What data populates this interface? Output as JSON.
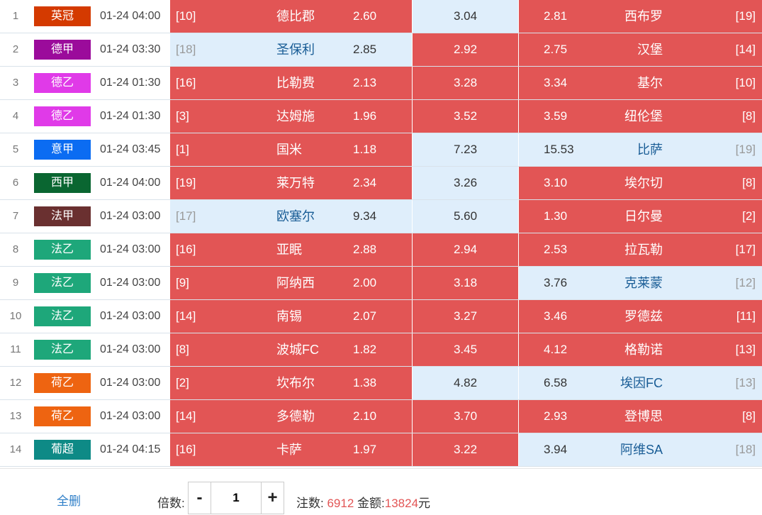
{
  "colors": {
    "hot": "#e25555",
    "cold": "#dfeefb"
  },
  "matches": [
    {
      "num": "1",
      "league": "英冠",
      "league_color": "#d43a00",
      "time": "01-24 04:00",
      "home_rank": "[10]",
      "home": "德比郡",
      "home_odd": "2.60",
      "home_hot": true,
      "draw_odd": "3.04",
      "draw_hot": false,
      "away_odd": "2.81",
      "away": "西布罗",
      "away_rank": "[19]",
      "away_hot": true
    },
    {
      "num": "2",
      "league": "德甲",
      "league_color": "#9b0b9b",
      "time": "01-24 03:30",
      "home_rank": "[18]",
      "home": "圣保利",
      "home_odd": "2.85",
      "home_hot": false,
      "draw_odd": "2.92",
      "draw_hot": true,
      "away_odd": "2.75",
      "away": "汉堡",
      "away_rank": "[14]",
      "away_hot": true
    },
    {
      "num": "3",
      "league": "德乙",
      "league_color": "#e03ae8",
      "time": "01-24 01:30",
      "home_rank": "[16]",
      "home": "比勒费",
      "home_odd": "2.13",
      "home_hot": true,
      "draw_odd": "3.28",
      "draw_hot": true,
      "away_odd": "3.34",
      "away": "基尔",
      "away_rank": "[10]",
      "away_hot": true
    },
    {
      "num": "4",
      "league": "德乙",
      "league_color": "#e03ae8",
      "time": "01-24 01:30",
      "home_rank": "[3]",
      "home": "达姆施",
      "home_odd": "1.96",
      "home_hot": true,
      "draw_odd": "3.52",
      "draw_hot": true,
      "away_odd": "3.59",
      "away": "纽伦堡",
      "away_rank": "[8]",
      "away_hot": true
    },
    {
      "num": "5",
      "league": "意甲",
      "league_color": "#0b6cf2",
      "time": "01-24 03:45",
      "home_rank": "[1]",
      "home": "国米",
      "home_odd": "1.18",
      "home_hot": true,
      "draw_odd": "7.23",
      "draw_hot": false,
      "away_odd": "15.53",
      "away": "比萨",
      "away_rank": "[19]",
      "away_hot": false
    },
    {
      "num": "6",
      "league": "西甲",
      "league_color": "#0a6631",
      "time": "01-24 04:00",
      "home_rank": "[19]",
      "home": "莱万特",
      "home_odd": "2.34",
      "home_hot": true,
      "draw_odd": "3.26",
      "draw_hot": false,
      "away_odd": "3.10",
      "away": "埃尔切",
      "away_rank": "[8]",
      "away_hot": true
    },
    {
      "num": "7",
      "league": "法甲",
      "league_color": "#6a3030",
      "time": "01-24 03:00",
      "home_rank": "[17]",
      "home": "欧塞尔",
      "home_odd": "9.34",
      "home_hot": false,
      "draw_odd": "5.60",
      "draw_hot": false,
      "away_odd": "1.30",
      "away": "日尔曼",
      "away_rank": "[2]",
      "away_hot": true
    },
    {
      "num": "8",
      "league": "法乙",
      "league_color": "#1ea77a",
      "time": "01-24 03:00",
      "home_rank": "[16]",
      "home": "亚眠",
      "home_odd": "2.88",
      "home_hot": true,
      "draw_odd": "2.94",
      "draw_hot": true,
      "away_odd": "2.53",
      "away": "拉瓦勒",
      "away_rank": "[17]",
      "away_hot": true
    },
    {
      "num": "9",
      "league": "法乙",
      "league_color": "#1ea77a",
      "time": "01-24 03:00",
      "home_rank": "[9]",
      "home": "阿纳西",
      "home_odd": "2.00",
      "home_hot": true,
      "draw_odd": "3.18",
      "draw_hot": true,
      "away_odd": "3.76",
      "away": "克莱蒙",
      "away_rank": "[12]",
      "away_hot": false
    },
    {
      "num": "10",
      "league": "法乙",
      "league_color": "#1ea77a",
      "time": "01-24 03:00",
      "home_rank": "[14]",
      "home": "南锡",
      "home_odd": "2.07",
      "home_hot": true,
      "draw_odd": "3.27",
      "draw_hot": true,
      "away_odd": "3.46",
      "away": "罗德兹",
      "away_rank": "[11]",
      "away_hot": true
    },
    {
      "num": "11",
      "league": "法乙",
      "league_color": "#1ea77a",
      "time": "01-24 03:00",
      "home_rank": "[8]",
      "home": "波城FC",
      "home_odd": "1.82",
      "home_hot": true,
      "draw_odd": "3.45",
      "draw_hot": true,
      "away_odd": "4.12",
      "away": "格勒诺",
      "away_rank": "[13]",
      "away_hot": true
    },
    {
      "num": "12",
      "league": "荷乙",
      "league_color": "#ee6411",
      "time": "01-24 03:00",
      "home_rank": "[2]",
      "home": "坎布尔",
      "home_odd": "1.38",
      "home_hot": true,
      "draw_odd": "4.82",
      "draw_hot": false,
      "away_odd": "6.58",
      "away": "埃因FC",
      "away_rank": "[13]",
      "away_hot": false
    },
    {
      "num": "13",
      "league": "荷乙",
      "league_color": "#ee6411",
      "time": "01-24 03:00",
      "home_rank": "[14]",
      "home": "多德勒",
      "home_odd": "2.10",
      "home_hot": true,
      "draw_odd": "3.70",
      "draw_hot": true,
      "away_odd": "2.93",
      "away": "登博思",
      "away_rank": "[8]",
      "away_hot": true
    },
    {
      "num": "14",
      "league": "葡超",
      "league_color": "#0e8a86",
      "time": "01-24 04:15",
      "home_rank": "[16]",
      "home": "卡萨",
      "home_odd": "1.97",
      "home_hot": true,
      "draw_odd": "3.22",
      "draw_hot": true,
      "away_odd": "3.94",
      "away": "阿维SA",
      "away_rank": "[18]",
      "away_hot": false
    }
  ],
  "footer": {
    "delete_all": "全删",
    "multiplier_label": "倍数:",
    "minus": "-",
    "plus": "+",
    "multiplier_value": "1",
    "bets_label": "注数:",
    "bets_value": "6912",
    "amount_label": "金额:",
    "amount_value": "13824",
    "currency": "元"
  }
}
